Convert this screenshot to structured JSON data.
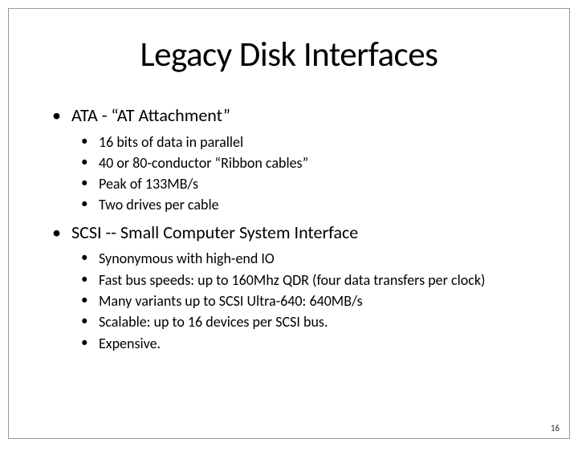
{
  "slide": {
    "title": "Legacy Disk Interfaces",
    "page_number": "16",
    "border_color": "#999999",
    "background_color": "#ffffff",
    "text_color": "#000000",
    "title_fontsize": 43,
    "level1_fontsize": 22,
    "level2_fontsize": 18,
    "bullets": [
      {
        "text": "ATA - “AT Attachment”",
        "sub": [
          "16 bits of data in parallel",
          "40 or 80-conductor “Ribbon cables”",
          "Peak of 133MB/s",
          "Two drives per cable"
        ]
      },
      {
        "text": "SCSI -- Small Computer System Interface",
        "sub": [
          "Synonymous with high-end IO",
          "Fast bus speeds: up to 160Mhz QDR (four data transfers per clock)",
          "Many variants up to SCSI Ultra-640: 640MB/s",
          "Scalable:  up to 16 devices per SCSI bus.",
          "Expensive."
        ]
      }
    ]
  }
}
